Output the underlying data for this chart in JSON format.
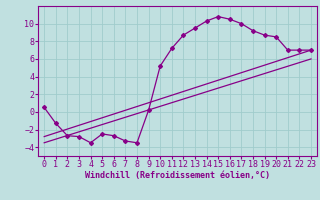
{
  "background_color": "#c0e0e0",
  "grid_color": "#a0cccc",
  "line_color": "#880088",
  "marker_color": "#880088",
  "xlabel": "Windchill (Refroidissement éolien,°C)",
  "xlabel_fontsize": 6.0,
  "tick_fontsize": 6.0,
  "ylim": [
    -5,
    12
  ],
  "xlim": [
    -0.5,
    23.5
  ],
  "yticks": [
    -4,
    -2,
    0,
    2,
    4,
    6,
    8,
    10
  ],
  "xticks": [
    0,
    1,
    2,
    3,
    4,
    5,
    6,
    7,
    8,
    9,
    10,
    11,
    12,
    13,
    14,
    15,
    16,
    17,
    18,
    19,
    20,
    21,
    22,
    23
  ],
  "series1_x": [
    0,
    1,
    2,
    3,
    4,
    5,
    6,
    7,
    8,
    9,
    10,
    11,
    12,
    13,
    14,
    15,
    16,
    17,
    18,
    19,
    20,
    21,
    22,
    23
  ],
  "series1_y": [
    0.5,
    -1.3,
    -2.7,
    -2.8,
    -3.5,
    -2.5,
    -2.7,
    -3.3,
    -3.5,
    0.2,
    5.2,
    7.2,
    8.7,
    9.5,
    10.3,
    10.8,
    10.5,
    10.0,
    9.2,
    8.7,
    8.5,
    7.0,
    7.0,
    7.0
  ],
  "series2_x": [
    0,
    23
  ],
  "series2_y": [
    -3.5,
    6.0
  ],
  "series3_x": [
    0,
    23
  ],
  "series3_y": [
    -2.8,
    7.0
  ]
}
